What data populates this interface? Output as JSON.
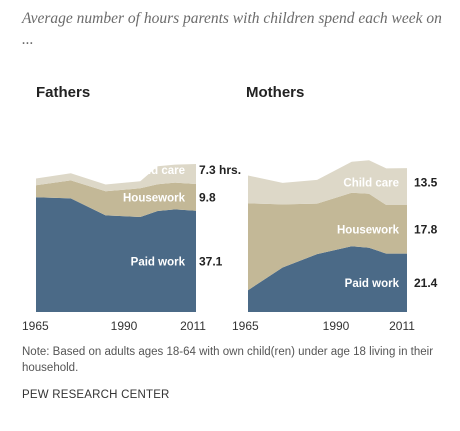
{
  "subtitle": "Average number of hours parents with children spend each week on ...",
  "chart_data": [
    {
      "type": "area",
      "stacked": true,
      "title": "Fathers",
      "x": [
        1965,
        1975,
        1985,
        1995,
        2000,
        2005,
        2011
      ],
      "xticks": [
        "1965",
        "1990",
        "2011"
      ],
      "series": [
        {
          "name": "Paid work",
          "values": [
            42.0,
            41.6,
            35.4,
            34.8,
            37.0,
            37.6,
            37.1
          ],
          "color": "#4b6a87"
        },
        {
          "name": "Housework",
          "values": [
            4.4,
            6.6,
            8.8,
            10.5,
            9.8,
            9.8,
            9.8
          ],
          "color": "#c3b897"
        },
        {
          "name": "Child care",
          "values": [
            2.5,
            2.6,
            2.5,
            2.6,
            6.6,
            6.6,
            7.3
          ],
          "color": "#ddd8c8"
        }
      ],
      "value_labels": [
        "7.3 hrs.",
        "9.8",
        "37.1"
      ],
      "ylim": [
        0,
        60
      ],
      "grid": false,
      "legend": "inline"
    },
    {
      "type": "area",
      "stacked": true,
      "title": "Mothers",
      "x": [
        1965,
        1975,
        1985,
        1995,
        2000,
        2005,
        2011
      ],
      "xticks": [
        "1965",
        "1990",
        "2011"
      ],
      "series": [
        {
          "name": "Paid work",
          "values": [
            8.0,
            16.3,
            21.2,
            24.1,
            23.5,
            21.4,
            21.4
          ],
          "color": "#4b6a87"
        },
        {
          "name": "Housework",
          "values": [
            31.8,
            23.1,
            18.5,
            19.6,
            19.8,
            17.8,
            17.8
          ],
          "color": "#c3b897"
        },
        {
          "name": "Child care",
          "values": [
            10.2,
            7.9,
            8.7,
            11.3,
            12.3,
            13.4,
            13.5
          ],
          "color": "#ddd8c8"
        }
      ],
      "value_labels": [
        "13.5",
        "17.8",
        "21.4"
      ],
      "ylim": [
        0,
        60
      ],
      "grid": false,
      "legend": "inline"
    }
  ],
  "note": "Note: Based on adults ages 18-64 with own child(ren) under age 18 living in their household.",
  "source": "PEW RESEARCH CENTER"
}
